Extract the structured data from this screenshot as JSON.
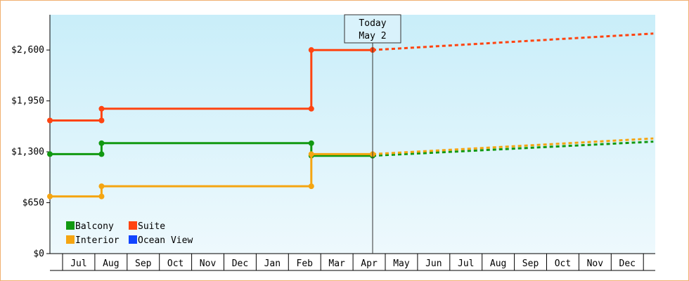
{
  "chart_data": {
    "type": "line",
    "step": true,
    "grid": false,
    "legend_position": "bottom-left",
    "y_ticks": [
      "$0",
      "$650",
      "$1,300",
      "$1,950",
      "$2,600"
    ],
    "ylim": [
      0,
      3050
    ],
    "y_tick_values": [
      0,
      650,
      1300,
      1950,
      2600
    ],
    "x_labels": [
      "Jul",
      "Aug",
      "Sep",
      "Oct",
      "Nov",
      "Dec",
      "Jan",
      "Feb",
      "Mar",
      "Apr",
      "May",
      "Jun",
      "Jul",
      "Aug",
      "Sep",
      "Oct",
      "Nov",
      "Dec"
    ],
    "today": {
      "line1": "Today",
      "line2": "May 2",
      "x_month_index": 10
    },
    "series": [
      {
        "name": "Balcony",
        "color": "#119911",
        "values": [
          {
            "x": 0,
            "y": 1270
          },
          {
            "x": 1.6,
            "y": 1270
          },
          {
            "x": 1.6,
            "y": 1410
          },
          {
            "x": 8.1,
            "y": 1410
          },
          {
            "x": 8.1,
            "y": 1250
          },
          {
            "x": 10,
            "y": 1250
          }
        ],
        "forecast": [
          {
            "x": 10,
            "y": 1250
          },
          {
            "x": 18.7,
            "y": 1430
          }
        ]
      },
      {
        "name": "Suite",
        "color": "#ff4411",
        "values": [
          {
            "x": 0,
            "y": 1700
          },
          {
            "x": 1.6,
            "y": 1700
          },
          {
            "x": 1.6,
            "y": 1850
          },
          {
            "x": 8.1,
            "y": 1850
          },
          {
            "x": 8.1,
            "y": 2600
          },
          {
            "x": 10,
            "y": 2600
          }
        ],
        "forecast": [
          {
            "x": 10,
            "y": 2600
          },
          {
            "x": 18.7,
            "y": 2810
          }
        ]
      },
      {
        "name": "Interior",
        "color": "#f5a511",
        "values": [
          {
            "x": 0,
            "y": 730
          },
          {
            "x": 1.6,
            "y": 730
          },
          {
            "x": 1.6,
            "y": 860
          },
          {
            "x": 8.1,
            "y": 860
          },
          {
            "x": 8.1,
            "y": 1270
          },
          {
            "x": 10,
            "y": 1270
          }
        ],
        "forecast": [
          {
            "x": 10,
            "y": 1270
          },
          {
            "x": 18.7,
            "y": 1470
          }
        ]
      },
      {
        "name": "Ocean View",
        "color": "#1144ff",
        "values": [],
        "forecast": []
      }
    ],
    "colors": {
      "plot_top": "#c9eef9",
      "plot_bottom": "#eef9fd",
      "frame_border": "#f0b070"
    }
  }
}
